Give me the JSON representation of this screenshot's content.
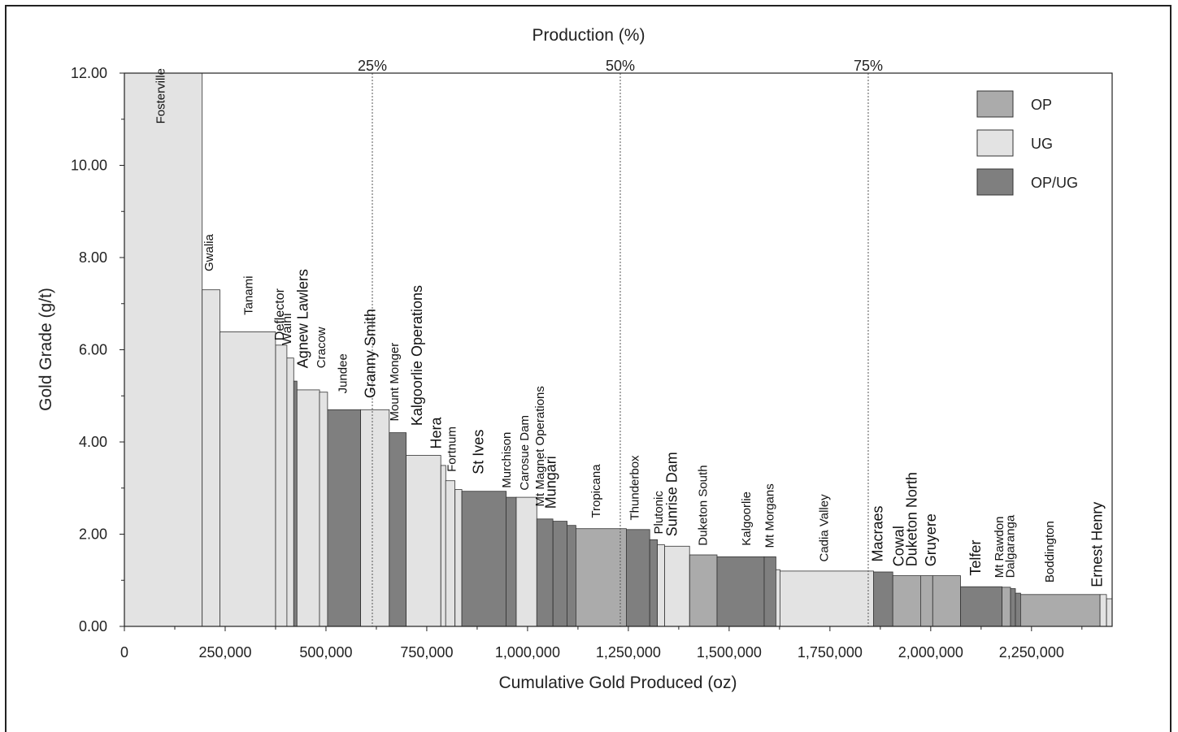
{
  "chart_data": {
    "type": "bar",
    "subtype": "variable-width cumulative bar (cost-curve style)",
    "title": "",
    "top_axis_label": "Production (%)",
    "xlabel": "Cumulative Gold Produced (oz)",
    "ylabel": "Gold Grade (g/t)",
    "xlim": [
      0,
      2450000
    ],
    "ylim": [
      0,
      12
    ],
    "x_ticks": [
      0,
      250000,
      500000,
      750000,
      1000000,
      1250000,
      1500000,
      1750000,
      2000000,
      2250000
    ],
    "x_tick_labels": [
      "0",
      "250,000",
      "500,000",
      "750,000",
      "1,000,000",
      "1,250,000",
      "1,500,000",
      "1,750,000",
      "2,000,000",
      "2,250,000"
    ],
    "y_ticks": [
      0,
      2,
      4,
      6,
      8,
      10,
      12
    ],
    "y_tick_labels": [
      "0.00",
      "2.00",
      "4.00",
      "6.00",
      "8.00",
      "10.00",
      "12.00"
    ],
    "percent_lines": [
      {
        "x": 615000,
        "label": "25%"
      },
      {
        "x": 1230000,
        "label": "50%"
      },
      {
        "x": 1845000,
        "label": "75%"
      }
    ],
    "legend": {
      "position": "top-right",
      "entries": [
        {
          "type": "OP",
          "label": "OP",
          "color": "#ababab"
        },
        {
          "type": "UG",
          "label": "UG",
          "color": "#e3e3e3"
        },
        {
          "type": "OPUG",
          "label": "OP/UG",
          "color": "#7f7f7f"
        }
      ]
    },
    "grid": false,
    "mines": [
      {
        "name": "Fosterville",
        "x0": 0,
        "x1": 193000,
        "grade": 12.0,
        "type": "UG"
      },
      {
        "name": "Gwalia",
        "x0": 193000,
        "x1": 237000,
        "grade": 7.3,
        "type": "UG"
      },
      {
        "name": "Tanami",
        "x0": 237000,
        "x1": 375000,
        "grade": 6.39,
        "type": "UG"
      },
      {
        "name": "Deflector",
        "x0": 375000,
        "x1": 403000,
        "grade": 6.1,
        "type": "UG"
      },
      {
        "name": "Waihi",
        "x0": 403000,
        "x1": 420000,
        "grade": 5.82,
        "type": "UG"
      },
      {
        "name": "Agnew Lawlers",
        "x0": 420000,
        "x1": 428000,
        "grade": 5.32,
        "type": "OPUG"
      },
      {
        "name": "Cracow",
        "x0": 428000,
        "x1": 484000,
        "grade": 5.13,
        "type": "UG"
      },
      {
        "name": "Jundee",
        "x0": 484000,
        "x1": 504000,
        "grade": 5.08,
        "type": "UG"
      },
      {
        "name": "Granny Smith",
        "x0": 504000,
        "x1": 586000,
        "grade": 4.7,
        "type": "OPUG"
      },
      {
        "name": "Mount Monger",
        "x0": 586000,
        "x1": 657000,
        "grade": 4.7,
        "type": "UG"
      },
      {
        "name": "Kalgoorlie Operations",
        "x0": 657000,
        "x1": 699000,
        "grade": 4.2,
        "type": "OPUG"
      },
      {
        "name": "Hera",
        "x0": 699000,
        "x1": 785000,
        "grade": 3.71,
        "type": "UG"
      },
      {
        "name": "Fortnum",
        "x0": 785000,
        "x1": 797000,
        "grade": 3.49,
        "type": "UG"
      },
      {
        "name": "St Ives",
        "x0": 797000,
        "x1": 820000,
        "grade": 3.16,
        "type": "UG"
      },
      {
        "name": "Murchison",
        "x0": 820000,
        "x1": 837000,
        "grade": 2.97,
        "type": "UG"
      },
      {
        "name": "Carosue Dam",
        "x0": 837000,
        "x1": 947000,
        "grade": 2.93,
        "type": "OPUG"
      },
      {
        "name": "Mt Magnet Operations",
        "x0": 947000,
        "x1": 972000,
        "grade": 2.8,
        "type": "OPUG"
      },
      {
        "name": "Mungari",
        "x0": 972000,
        "x1": 1023000,
        "grade": 2.8,
        "type": "UG"
      },
      {
        "name": "Tropicana",
        "x0": 1023000,
        "x1": 1063000,
        "grade": 2.33,
        "type": "OPUG"
      },
      {
        "name": "Thunderbox",
        "x0": 1063000,
        "x1": 1098000,
        "grade": 2.28,
        "type": "OPUG"
      },
      {
        "name": "Plutonic",
        "x0": 1098000,
        "x1": 1120000,
        "grade": 2.19,
        "type": "OPUG"
      },
      {
        "name": "Sunrise Dam",
        "x0": 1120000,
        "x1": 1245000,
        "grade": 2.12,
        "type": "OP"
      },
      {
        "name": "Duketon South",
        "x0": 1245000,
        "x1": 1303000,
        "grade": 2.1,
        "type": "OPUG"
      },
      {
        "name": "Kalgoorlie",
        "x0": 1303000,
        "x1": 1322000,
        "grade": 1.88,
        "type": "OPUG"
      },
      {
        "name": "Mt Morgans",
        "x0": 1322000,
        "x1": 1340000,
        "grade": 1.77,
        "type": "UG"
      },
      {
        "name": "Cadia Valley",
        "x0": 1340000,
        "x1": 1402000,
        "grade": 1.74,
        "type": "UG"
      },
      {
        "name": "Macraes",
        "x0": 1402000,
        "x1": 1470000,
        "grade": 1.55,
        "type": "OP"
      },
      {
        "name": "Cowal",
        "x0": 1470000,
        "x1": 1587000,
        "grade": 1.51,
        "type": "OPUG"
      },
      {
        "name": "Duketon North",
        "x0": 1587000,
        "x1": 1616000,
        "grade": 1.51,
        "type": "OPUG"
      },
      {
        "name": "Gruyere",
        "x0": 1616000,
        "x1": 1626000,
        "grade": 1.23,
        "type": "UG"
      },
      {
        "name": "Telfer",
        "x0": 1626000,
        "x1": 1858000,
        "grade": 1.2,
        "type": "UG"
      },
      {
        "name": "Mt Rawdon",
        "x0": 1858000,
        "x1": 1906000,
        "grade": 1.18,
        "type": "OPUG"
      },
      {
        "name": "Dalgaranga",
        "x0": 1906000,
        "x1": 1975000,
        "grade": 1.1,
        "type": "OP"
      },
      {
        "name": "Boddington",
        "x0": 1975000,
        "x1": 2005000,
        "grade": 1.1,
        "type": "OP"
      },
      {
        "name": "Ernest Henry",
        "x0": 2005000,
        "x1": 2074000,
        "grade": 1.1,
        "type": "OP"
      },
      {
        "name": "",
        "x0": 2074000,
        "x1": 2177000,
        "grade": 0.86,
        "type": "OPUG"
      },
      {
        "name": "",
        "x0": 2177000,
        "x1": 2198000,
        "grade": 0.85,
        "type": "OP"
      },
      {
        "name": "",
        "x0": 2198000,
        "x1": 2210000,
        "grade": 0.82,
        "type": "OPUG"
      },
      {
        "name": "",
        "x0": 2210000,
        "x1": 2223000,
        "grade": 0.72,
        "type": "OPUG"
      },
      {
        "name": "",
        "x0": 2223000,
        "x1": 2420000,
        "grade": 0.69,
        "type": "OP"
      },
      {
        "name": "",
        "x0": 2420000,
        "x1": 2436000,
        "grade": 0.69,
        "type": "UG"
      },
      {
        "name": "",
        "x0": 2436000,
        "x1": 2460000,
        "grade": 0.6,
        "type": "UG"
      }
    ],
    "mine_labels": [
      {
        "text": "Fosterville",
        "x": 100000,
        "grade": 10.9,
        "size": 15
      },
      {
        "text": "Gwalia",
        "x": 220000,
        "grade": 7.7,
        "size": 15
      },
      {
        "text": "Tanami",
        "x": 318000,
        "grade": 6.75,
        "size": 15
      },
      {
        "text": "Deflector",
        "x": 395000,
        "grade": 6.2,
        "size": 16
      },
      {
        "text": "Waihi",
        "x": 413000,
        "grade": 6.1,
        "size": 16
      },
      {
        "text": "Agnew Lawlers",
        "x": 455000,
        "grade": 5.6,
        "size": 18
      },
      {
        "text": "Cracow",
        "x": 498000,
        "grade": 5.6,
        "size": 15
      },
      {
        "text": "Jundee",
        "x": 552000,
        "grade": 5.05,
        "size": 15
      },
      {
        "text": "Granny Smith",
        "x": 622000,
        "grade": 4.95,
        "size": 18
      },
      {
        "text": "Mount Monger",
        "x": 680000,
        "grade": 4.45,
        "size": 15
      },
      {
        "text": "Kalgoorlie Operations",
        "x": 738000,
        "grade": 4.35,
        "size": 18
      },
      {
        "text": "Hera",
        "x": 785000,
        "grade": 3.85,
        "size": 18
      },
      {
        "text": "Fortnum",
        "x": 822000,
        "grade": 3.35,
        "size": 15
      },
      {
        "text": "St Ives",
        "x": 890000,
        "grade": 3.3,
        "size": 18
      },
      {
        "text": "Murchison",
        "x": 958000,
        "grade": 3.0,
        "size": 15
      },
      {
        "text": "Carosue Dam",
        "x": 1002000,
        "grade": 2.95,
        "size": 15
      },
      {
        "text": "Mt Magnet Operations",
        "x": 1040000,
        "grade": 2.6,
        "size": 15
      },
      {
        "text": "Mungari",
        "x": 1070000,
        "grade": 2.55,
        "size": 18
      },
      {
        "text": "Tropicana",
        "x": 1180000,
        "grade": 2.35,
        "size": 15
      },
      {
        "text": "Thunderbox",
        "x": 1275000,
        "grade": 2.3,
        "size": 15
      },
      {
        "text": "Plutonic",
        "x": 1335000,
        "grade": 2.0,
        "size": 15
      },
      {
        "text": "Sunrise Dam",
        "x": 1370000,
        "grade": 1.95,
        "size": 18
      },
      {
        "text": "Duketon South",
        "x": 1445000,
        "grade": 1.75,
        "size": 15
      },
      {
        "text": "Kalgoorlie",
        "x": 1553000,
        "grade": 1.75,
        "size": 15
      },
      {
        "text": "Mt Morgans",
        "x": 1610000,
        "grade": 1.7,
        "size": 15
      },
      {
        "text": "Cadia Valley",
        "x": 1745000,
        "grade": 1.4,
        "size": 15
      },
      {
        "text": "Macraes",
        "x": 1880000,
        "grade": 1.4,
        "size": 18
      },
      {
        "text": "Cowal",
        "x": 1933000,
        "grade": 1.3,
        "size": 18
      },
      {
        "text": "Duketon North",
        "x": 1965000,
        "grade": 1.3,
        "size": 18
      },
      {
        "text": "Gruyere",
        "x": 2012000,
        "grade": 1.3,
        "size": 18
      },
      {
        "text": "Telfer",
        "x": 2123000,
        "grade": 1.1,
        "size": 18
      },
      {
        "text": "Mt Rawdon",
        "x": 2180000,
        "grade": 1.05,
        "size": 15
      },
      {
        "text": "Dalgaranga",
        "x": 2207000,
        "grade": 1.05,
        "size": 15
      },
      {
        "text": "Boddington",
        "x": 2305000,
        "grade": 0.95,
        "size": 15
      },
      {
        "text": "Ernest Henry",
        "x": 2425000,
        "grade": 0.85,
        "size": 18
      }
    ]
  }
}
